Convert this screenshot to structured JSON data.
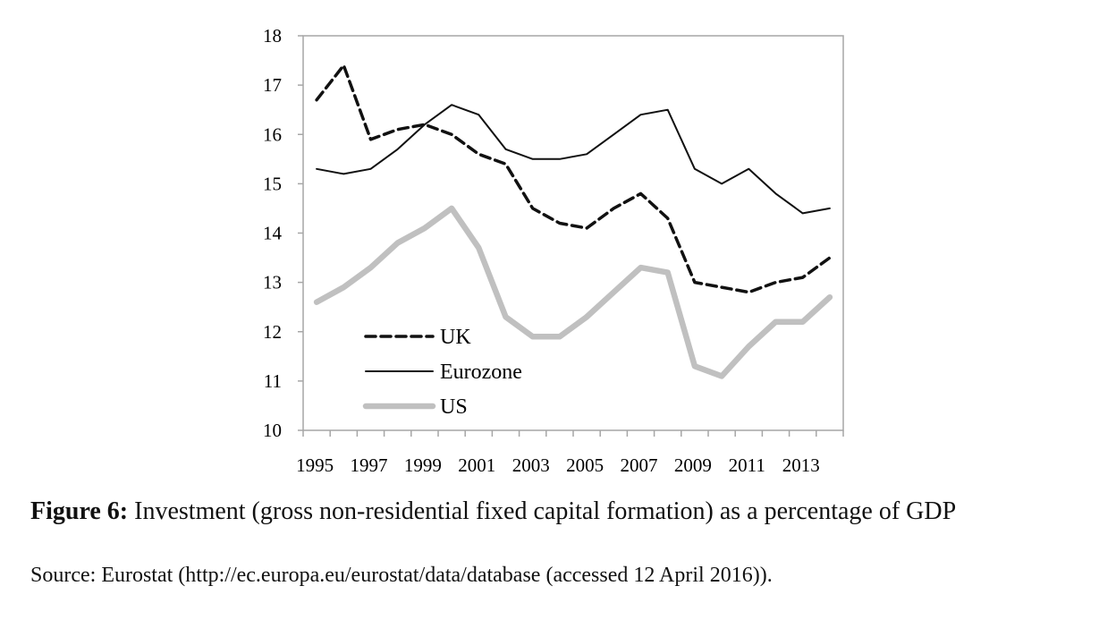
{
  "chart_data": {
    "type": "line",
    "title": "",
    "xlabel": "",
    "ylabel": "",
    "x": [
      1995,
      1996,
      1997,
      1998,
      1999,
      2000,
      2001,
      2002,
      2003,
      2004,
      2005,
      2006,
      2007,
      2008,
      2009,
      2010,
      2011,
      2012,
      2013,
      2014
    ],
    "x_tick_labels": [
      "1995",
      "1997",
      "1999",
      "2001",
      "2003",
      "2005",
      "2007",
      "2009",
      "2011",
      "2013"
    ],
    "ylim": [
      10,
      18
    ],
    "y_ticks": [
      10,
      11,
      12,
      13,
      14,
      15,
      16,
      17,
      18
    ],
    "grid": false,
    "legend_placement": "bottom-left inside",
    "series": [
      {
        "name": "UK",
        "style": "dashed",
        "color": "#111111",
        "values": [
          16.7,
          17.4,
          15.9,
          16.1,
          16.2,
          16.0,
          15.6,
          15.4,
          14.5,
          14.2,
          14.1,
          14.5,
          14.8,
          14.3,
          13.0,
          12.9,
          12.8,
          13.0,
          13.1,
          13.5
        ]
      },
      {
        "name": "Eurozone",
        "style": "solid-thin",
        "color": "#111111",
        "values": [
          15.3,
          15.2,
          15.3,
          15.7,
          16.2,
          16.6,
          16.4,
          15.7,
          15.5,
          15.5,
          15.6,
          16.0,
          16.4,
          16.5,
          15.3,
          15.0,
          15.3,
          14.8,
          14.4,
          14.5
        ]
      },
      {
        "name": "US",
        "style": "solid-thick",
        "color": "#c0c0c0",
        "values": [
          12.6,
          12.9,
          13.3,
          13.8,
          14.1,
          14.5,
          13.7,
          12.3,
          11.9,
          11.9,
          12.3,
          12.8,
          13.3,
          13.2,
          11.3,
          11.1,
          11.7,
          12.2,
          12.2,
          12.7
        ]
      }
    ]
  },
  "caption": {
    "label": "Figure 6:",
    "text": " Investment (gross non-residential fixed capital formation) as a percentage of GDP"
  },
  "source": "Source: Eurostat (http://ec.europa.eu/eurostat/data/database (accessed 12 April 2016))."
}
